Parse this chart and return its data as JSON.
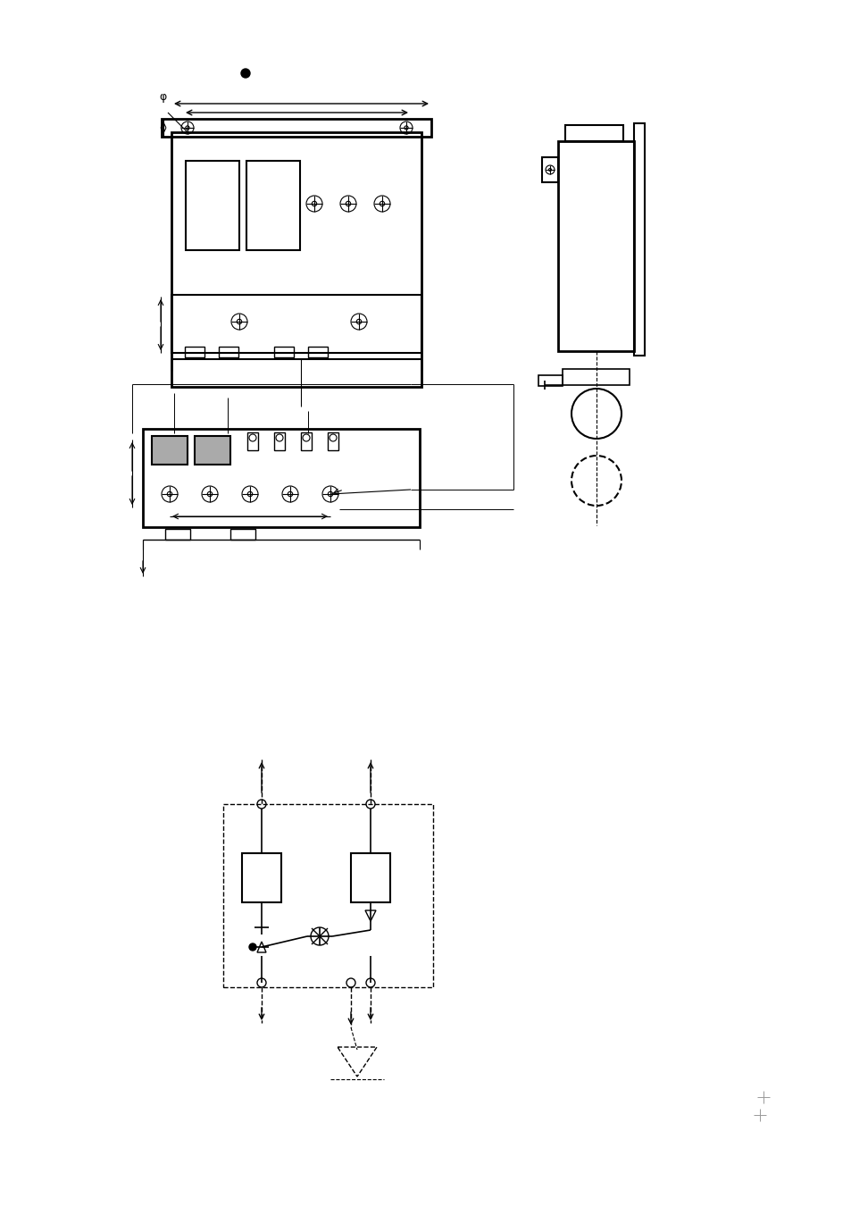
{
  "bg_color": "#ffffff",
  "line_color": "#000000",
  "fig_width": 9.54,
  "fig_height": 13.51,
  "dpi": 100
}
